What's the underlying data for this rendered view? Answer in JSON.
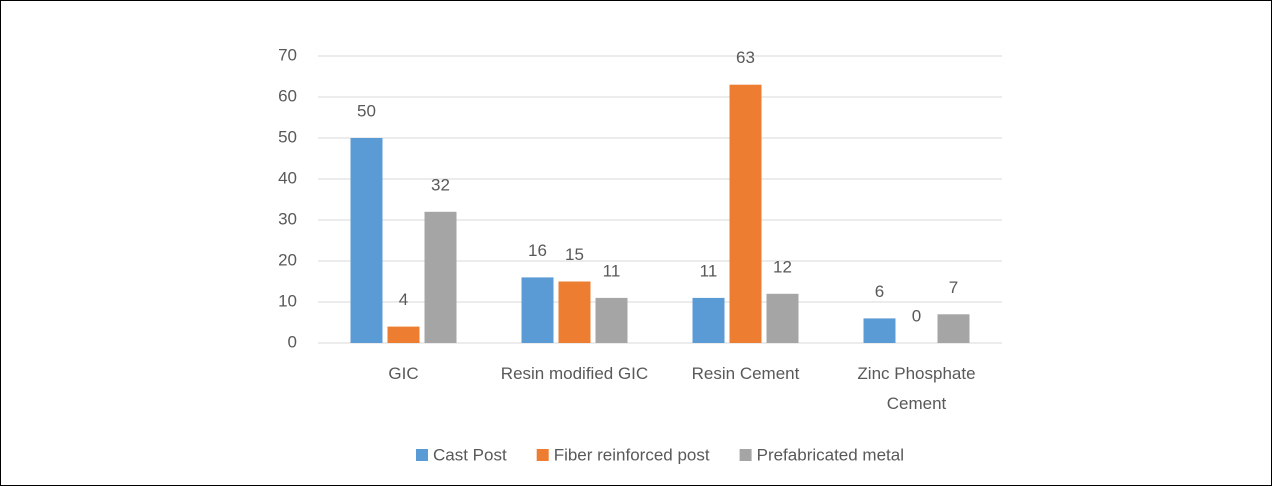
{
  "chart_data": {
    "type": "bar",
    "categories": [
      "GIC",
      "Resin modified GIC",
      "Resin Cement",
      "Zinc Phosphate Cement"
    ],
    "series": [
      {
        "name": "Cast Post",
        "color": "#5b9bd5",
        "values": [
          50,
          16,
          11,
          6
        ]
      },
      {
        "name": "Fiber reinforced post",
        "color": "#ed7d31",
        "values": [
          4,
          15,
          63,
          0
        ]
      },
      {
        "name": "Prefabricated metal",
        "color": "#a5a5a5",
        "values": [
          32,
          11,
          12,
          7
        ]
      }
    ],
    "ylim": [
      0,
      70
    ],
    "yticks": [
      0,
      10,
      20,
      30,
      40,
      50,
      60,
      70
    ],
    "grid": true,
    "legend": "bottom"
  }
}
